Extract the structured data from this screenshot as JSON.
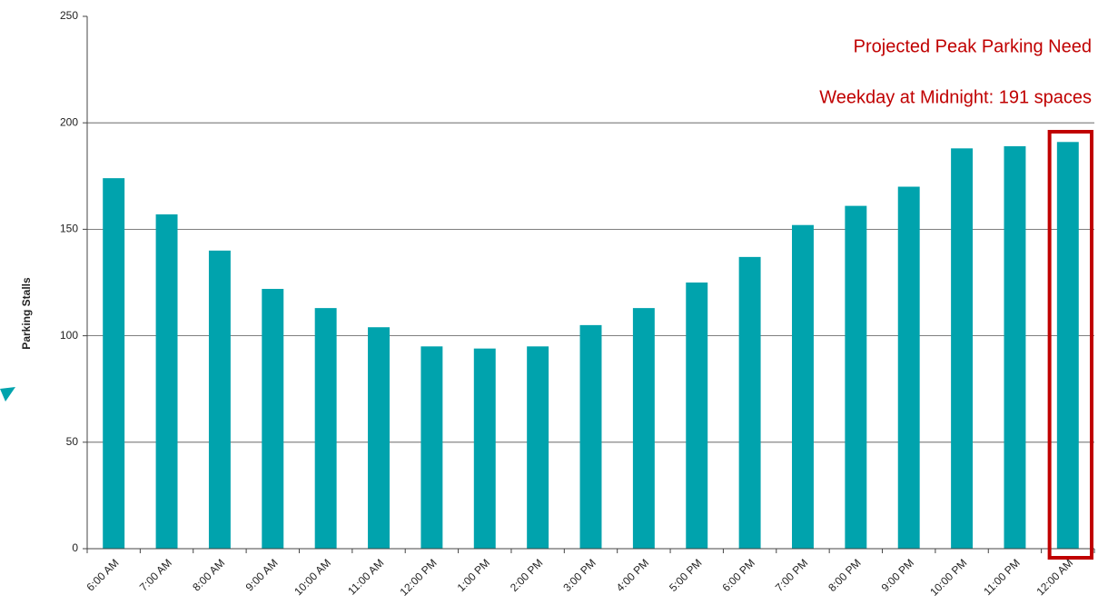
{
  "chart_data": {
    "type": "bar",
    "y_label": "Parking Stalls",
    "annotations": [
      "Projected Peak Parking Need",
      "Weekday at Midnight: 191 spaces"
    ],
    "categories": [
      "6:00 AM",
      "7:00 AM",
      "8:00 AM",
      "9:00 AM",
      "10:00 AM",
      "11:00 AM",
      "12:00 PM",
      "1:00 PM",
      "2:00 PM",
      "3:00 PM",
      "4:00 PM",
      "5:00 PM",
      "6:00 PM",
      "7:00 PM",
      "8:00 PM",
      "9:00 PM",
      "10:00 PM",
      "11:00 PM",
      "12:00 AM"
    ],
    "values": [
      174,
      157,
      140,
      122,
      113,
      104,
      95,
      94,
      95,
      105,
      113,
      125,
      137,
      152,
      161,
      170,
      188,
      189,
      191
    ],
    "color": "#00a3ad",
    "highlight_color": "#c00000",
    "ylim": [
      0,
      250
    ],
    "yticks": [
      0,
      50,
      100,
      150,
      200,
      250
    ],
    "grid": true
  }
}
